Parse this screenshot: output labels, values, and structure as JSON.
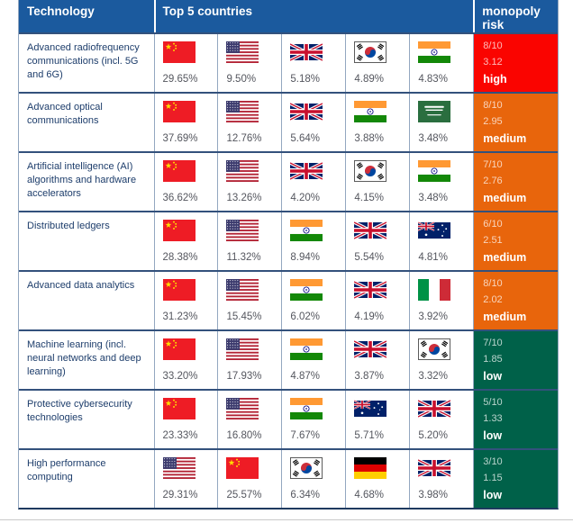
{
  "header": {
    "technology": "Technology",
    "top5": "Top 5 countries",
    "risk": "monopoly risk"
  },
  "risk_colors": {
    "high": "#fa0400",
    "medium": "#e8650c",
    "low": "#006149",
    "header_blue": "#1b5a9e"
  },
  "chart_data": {
    "type": "table",
    "columns": [
      "Technology",
      "Top 5 countries",
      "monopoly risk"
    ],
    "rows": [
      {
        "technology": "Advanced radiofrequency communications (incl. 5G and 6G)",
        "top5": [
          {
            "country": "China",
            "share_pct": 29.65
          },
          {
            "country": "United States",
            "share_pct": 9.5
          },
          {
            "country": "United Kingdom",
            "share_pct": 5.18
          },
          {
            "country": "South Korea",
            "share_pct": 4.89
          },
          {
            "country": "India",
            "share_pct": 4.83
          }
        ],
        "monopoly_risk": {
          "score_out_of_10": 8,
          "index": 3.12,
          "level": "high"
        }
      },
      {
        "technology": "Advanced optical communications",
        "top5": [
          {
            "country": "China",
            "share_pct": 37.69
          },
          {
            "country": "United States",
            "share_pct": 12.76
          },
          {
            "country": "United Kingdom",
            "share_pct": 5.64
          },
          {
            "country": "India",
            "share_pct": 3.88
          },
          {
            "country": "Saudi Arabia",
            "share_pct": 3.48
          }
        ],
        "monopoly_risk": {
          "score_out_of_10": 8,
          "index": 2.95,
          "level": "medium"
        }
      },
      {
        "technology": "Artificial intelligence (AI) algorithms and hardware accelerators",
        "top5": [
          {
            "country": "China",
            "share_pct": 36.62
          },
          {
            "country": "United States",
            "share_pct": 13.26
          },
          {
            "country": "United Kingdom",
            "share_pct": 4.2
          },
          {
            "country": "South Korea",
            "share_pct": 4.15
          },
          {
            "country": "India",
            "share_pct": 3.48
          }
        ],
        "monopoly_risk": {
          "score_out_of_10": 7,
          "index": 2.76,
          "level": "medium"
        }
      },
      {
        "technology": "Distributed ledgers",
        "top5": [
          {
            "country": "China",
            "share_pct": 28.38
          },
          {
            "country": "United States",
            "share_pct": 11.32
          },
          {
            "country": "India",
            "share_pct": 8.94
          },
          {
            "country": "United Kingdom",
            "share_pct": 5.54
          },
          {
            "country": "Australia",
            "share_pct": 4.81
          }
        ],
        "monopoly_risk": {
          "score_out_of_10": 6,
          "index": 2.51,
          "level": "medium"
        }
      },
      {
        "technology": "Advanced data analytics",
        "top5": [
          {
            "country": "China",
            "share_pct": 31.23
          },
          {
            "country": "United States",
            "share_pct": 15.45
          },
          {
            "country": "India",
            "share_pct": 6.02
          },
          {
            "country": "United Kingdom",
            "share_pct": 4.19
          },
          {
            "country": "Italy",
            "share_pct": 3.92
          }
        ],
        "monopoly_risk": {
          "score_out_of_10": 8,
          "index": 2.02,
          "level": "medium"
        }
      },
      {
        "technology": "Machine learning (incl. neural networks and deep learning)",
        "top5": [
          {
            "country": "China",
            "share_pct": 33.2
          },
          {
            "country": "United States",
            "share_pct": 17.93
          },
          {
            "country": "India",
            "share_pct": 4.87
          },
          {
            "country": "United Kingdom",
            "share_pct": 3.87
          },
          {
            "country": "South Korea",
            "share_pct": 3.32
          }
        ],
        "monopoly_risk": {
          "score_out_of_10": 7,
          "index": 1.85,
          "level": "low"
        }
      },
      {
        "technology": "Protective cybersecurity technologies",
        "top5": [
          {
            "country": "China",
            "share_pct": 23.33
          },
          {
            "country": "United States",
            "share_pct": 16.8
          },
          {
            "country": "India",
            "share_pct": 7.67
          },
          {
            "country": "Australia",
            "share_pct": 5.71
          },
          {
            "country": "United Kingdom",
            "share_pct": 5.2
          }
        ],
        "monopoly_risk": {
          "score_out_of_10": 5,
          "index": 1.33,
          "level": "low"
        }
      },
      {
        "technology": "High performance computing",
        "top5": [
          {
            "country": "United States",
            "share_pct": 29.31
          },
          {
            "country": "China",
            "share_pct": 25.57
          },
          {
            "country": "South Korea",
            "share_pct": 6.34
          },
          {
            "country": "Germany",
            "share_pct": 4.68
          },
          {
            "country": "United Kingdom",
            "share_pct": 3.98
          }
        ],
        "monopoly_risk": {
          "score_out_of_10": 3,
          "index": 1.15,
          "level": "low"
        }
      }
    ]
  }
}
